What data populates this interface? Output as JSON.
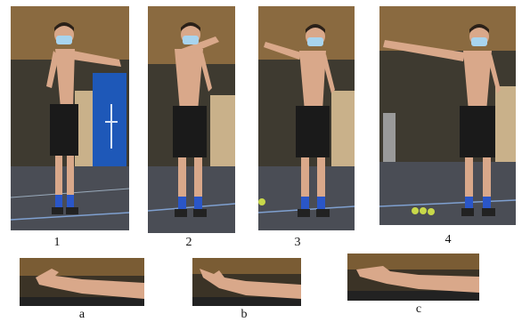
{
  "figure": {
    "panels": [
      {
        "label": "1"
      },
      {
        "label": "2"
      },
      {
        "label": "3"
      },
      {
        "label": "4"
      }
    ],
    "closeups": [
      {
        "label": "a"
      },
      {
        "label": "b"
      },
      {
        "label": "c"
      }
    ]
  },
  "colors": {
    "skin": "#d9a88a",
    "shorts": "#1a1a1a",
    "sock": "#2a56c8",
    "floor": "#4a4d55",
    "wall": "#8a6a40",
    "crate": "#c9b18a",
    "mat": "#1e58b8",
    "mask": "#a8d4ee"
  }
}
